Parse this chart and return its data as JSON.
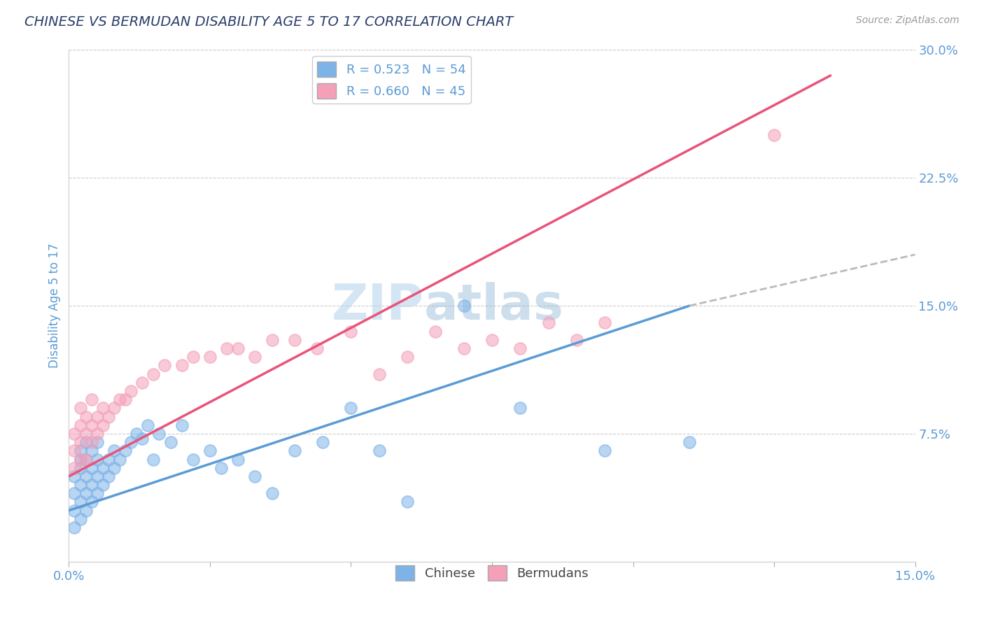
{
  "title": "CHINESE VS BERMUDAN DISABILITY AGE 5 TO 17 CORRELATION CHART",
  "source": "Source: ZipAtlas.com",
  "ylabel": "Disability Age 5 to 17",
  "xlim": [
    0.0,
    0.15
  ],
  "ylim": [
    0.0,
    0.3
  ],
  "xticks": [
    0.0,
    0.025,
    0.05,
    0.075,
    0.1,
    0.125,
    0.15
  ],
  "xticklabels": [
    "0.0%",
    "",
    "",
    "",
    "",
    "",
    "15.0%"
  ],
  "yticks_right": [
    0.0,
    0.075,
    0.15,
    0.225,
    0.3
  ],
  "yticklabels_right": [
    "",
    "7.5%",
    "15.0%",
    "22.5%",
    "30.0%"
  ],
  "chinese_R": 0.523,
  "chinese_N": 54,
  "bermudan_R": 0.66,
  "bermudan_N": 45,
  "chinese_color": "#7EB3E8",
  "bermudan_color": "#F4A0B8",
  "chinese_line_color": "#5B9BD5",
  "bermudan_line_color": "#E8547A",
  "dashed_line_color": "#BBBBBB",
  "background_color": "#FFFFFF",
  "title_color": "#2C3E6B",
  "source_color": "#999999",
  "tick_label_color": "#5B9BD5",
  "chinese_x": [
    0.001,
    0.001,
    0.001,
    0.001,
    0.002,
    0.002,
    0.002,
    0.002,
    0.002,
    0.002,
    0.003,
    0.003,
    0.003,
    0.003,
    0.003,
    0.004,
    0.004,
    0.004,
    0.004,
    0.005,
    0.005,
    0.005,
    0.005,
    0.006,
    0.006,
    0.007,
    0.007,
    0.008,
    0.008,
    0.009,
    0.01,
    0.011,
    0.012,
    0.013,
    0.014,
    0.015,
    0.016,
    0.018,
    0.02,
    0.022,
    0.025,
    0.027,
    0.03,
    0.033,
    0.036,
    0.04,
    0.045,
    0.05,
    0.055,
    0.06,
    0.07,
    0.08,
    0.095,
    0.11
  ],
  "chinese_y": [
    0.02,
    0.03,
    0.04,
    0.05,
    0.025,
    0.035,
    0.045,
    0.055,
    0.06,
    0.065,
    0.03,
    0.04,
    0.05,
    0.06,
    0.07,
    0.035,
    0.045,
    0.055,
    0.065,
    0.04,
    0.05,
    0.06,
    0.07,
    0.045,
    0.055,
    0.05,
    0.06,
    0.055,
    0.065,
    0.06,
    0.065,
    0.07,
    0.075,
    0.072,
    0.08,
    0.06,
    0.075,
    0.07,
    0.08,
    0.06,
    0.065,
    0.055,
    0.06,
    0.05,
    0.04,
    0.065,
    0.07,
    0.09,
    0.065,
    0.035,
    0.15,
    0.09,
    0.065,
    0.07
  ],
  "bermudan_x": [
    0.001,
    0.001,
    0.001,
    0.002,
    0.002,
    0.002,
    0.002,
    0.003,
    0.003,
    0.003,
    0.004,
    0.004,
    0.004,
    0.005,
    0.005,
    0.006,
    0.006,
    0.007,
    0.008,
    0.009,
    0.01,
    0.011,
    0.013,
    0.015,
    0.017,
    0.02,
    0.022,
    0.025,
    0.028,
    0.03,
    0.033,
    0.036,
    0.04,
    0.044,
    0.05,
    0.055,
    0.06,
    0.065,
    0.07,
    0.075,
    0.08,
    0.085,
    0.09,
    0.095,
    0.125
  ],
  "bermudan_y": [
    0.055,
    0.065,
    0.075,
    0.06,
    0.07,
    0.08,
    0.09,
    0.06,
    0.075,
    0.085,
    0.07,
    0.08,
    0.095,
    0.075,
    0.085,
    0.08,
    0.09,
    0.085,
    0.09,
    0.095,
    0.095,
    0.1,
    0.105,
    0.11,
    0.115,
    0.115,
    0.12,
    0.12,
    0.125,
    0.125,
    0.12,
    0.13,
    0.13,
    0.125,
    0.135,
    0.11,
    0.12,
    0.135,
    0.125,
    0.13,
    0.125,
    0.14,
    0.13,
    0.14,
    0.25
  ],
  "chinese_line_x0": 0.0,
  "chinese_line_y0": 0.03,
  "chinese_line_x1": 0.11,
  "chinese_line_y1": 0.15,
  "chinese_line_dash_x1": 0.15,
  "chinese_line_dash_y1": 0.18,
  "bermudan_line_x0": 0.0,
  "bermudan_line_y0": 0.05,
  "bermudan_line_x1": 0.135,
  "bermudan_line_y1": 0.285
}
